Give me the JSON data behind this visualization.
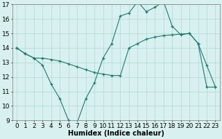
{
  "line1_x": [
    0,
    1,
    2,
    3,
    4,
    5,
    6,
    7,
    8,
    9,
    10,
    11,
    12,
    13,
    14,
    15,
    16,
    17,
    18,
    19,
    20,
    21,
    22,
    23
  ],
  "line1_y": [
    14.0,
    13.6,
    13.3,
    12.8,
    11.5,
    10.5,
    9.0,
    8.85,
    10.5,
    11.6,
    13.3,
    14.3,
    16.2,
    16.4,
    17.2,
    16.5,
    16.8,
    17.2,
    15.5,
    14.9,
    15.0,
    14.3,
    12.8,
    11.3
  ],
  "line2_x": [
    0,
    1,
    2,
    3,
    4,
    5,
    6,
    7,
    8,
    9,
    10,
    11,
    12,
    13,
    14,
    15,
    16,
    17,
    18,
    19,
    20,
    21,
    22,
    23
  ],
  "line2_y": [
    14.0,
    13.6,
    13.3,
    13.3,
    13.2,
    13.1,
    12.9,
    12.7,
    12.5,
    12.3,
    12.2,
    12.1,
    12.1,
    14.0,
    14.3,
    14.6,
    14.75,
    14.85,
    14.9,
    14.95,
    15.0,
    14.3,
    11.3,
    11.3
  ],
  "color": "#1a7a6e",
  "bg_color": "#d8f0ef",
  "grid_color": "#b0d8d5",
  "xlabel": "Humidex (Indice chaleur)",
  "ylim_min": 9,
  "ylim_max": 17,
  "xlim_min": -0.5,
  "xlim_max": 23.5,
  "yticks": [
    9,
    10,
    11,
    12,
    13,
    14,
    15,
    16,
    17
  ],
  "xticks": [
    0,
    1,
    2,
    3,
    4,
    5,
    6,
    7,
    8,
    9,
    10,
    11,
    12,
    13,
    14,
    15,
    16,
    17,
    18,
    19,
    20,
    21,
    22,
    23
  ],
  "xlabel_fontsize": 7,
  "tick_fontsize": 6.5
}
